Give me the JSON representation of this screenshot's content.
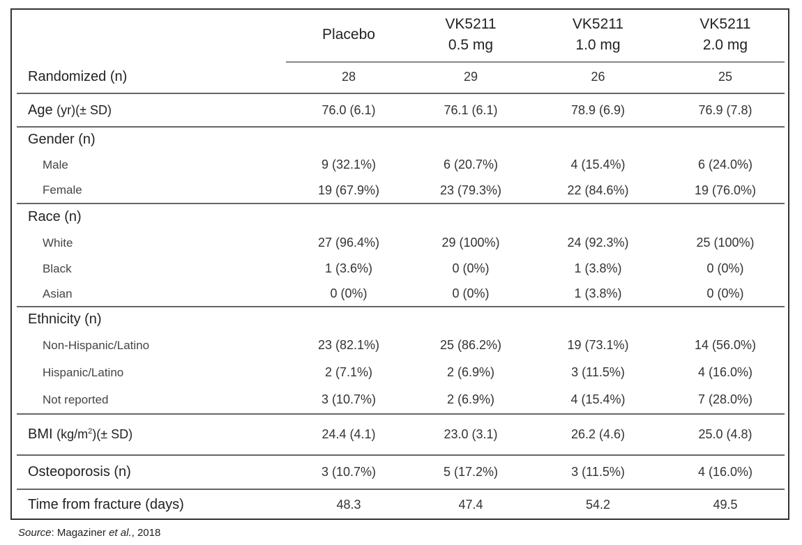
{
  "columns": [
    "Placebo",
    "VK5211\n0.5 mg",
    "VK5211\n1.0 mg",
    "VK5211\n2.0 mg"
  ],
  "column_lines": [
    [
      "Placebo",
      ""
    ],
    [
      "VK5211",
      "0.5 mg"
    ],
    [
      "VK5211",
      "1.0 mg"
    ],
    [
      "VK5211",
      "2.0 mg"
    ]
  ],
  "rows": {
    "randomized": {
      "label": "Randomized (n)",
      "values": [
        "28",
        "29",
        "26",
        "25"
      ]
    },
    "age": {
      "label": "Age",
      "unit": "(yr)(± SD)",
      "values": [
        "76.0 (6.1)",
        "76.1 (6.1)",
        "78.9 (6.9)",
        "76.9 (7.8)"
      ]
    },
    "gender": {
      "label": "Gender (n)"
    },
    "male": {
      "label": "Male",
      "values": [
        "9 (32.1%)",
        "6 (20.7%)",
        "4 (15.4%)",
        "6 (24.0%)"
      ]
    },
    "female": {
      "label": "Female",
      "values": [
        "19 (67.9%)",
        "23 (79.3%)",
        "22 (84.6%)",
        "19 (76.0%)"
      ]
    },
    "race": {
      "label": "Race (n)"
    },
    "white": {
      "label": "White",
      "values": [
        "27 (96.4%)",
        "29 (100%)",
        "24 (92.3%)",
        "25 (100%)"
      ]
    },
    "black": {
      "label": "Black",
      "values": [
        "1 (3.6%)",
        "0 (0%)",
        "1 (3.8%)",
        "0 (0%)"
      ]
    },
    "asian": {
      "label": "Asian",
      "values": [
        "0 (0%)",
        "0 (0%)",
        "1 (3.8%)",
        "0 (0%)"
      ]
    },
    "ethnicity": {
      "label": "Ethnicity (n)"
    },
    "non_hispanic": {
      "label": "Non-Hispanic/Latino",
      "values": [
        "23 (82.1%)",
        "25 (86.2%)",
        "19 (73.1%)",
        "14 (56.0%)"
      ]
    },
    "hispanic": {
      "label": "Hispanic/Latino",
      "values": [
        "2 (7.1%)",
        "2 (6.9%)",
        "3 (11.5%)",
        "4 (16.0%)"
      ]
    },
    "not_reported": {
      "label": "Not reported",
      "values": [
        "3 (10.7%)",
        "2 (6.9%)",
        "4 (15.4%)",
        "7 (28.0%)"
      ]
    },
    "bmi": {
      "label": "BMI",
      "unit_pre": "(kg/m",
      "unit_sup": "2",
      "unit_post": ")(± SD)",
      "values": [
        "24.4 (4.1)",
        "23.0 (3.1)",
        "26.2 (4.6)",
        "25.0 (4.8)"
      ]
    },
    "osteoporosis": {
      "label": "Osteoporosis (n)",
      "values": [
        "3 (10.7%)",
        "5 (17.2%)",
        "3 (11.5%)",
        "4 (16.0%)"
      ]
    },
    "time_from_fracture": {
      "label": "Time from fracture (days)",
      "values": [
        "48.3",
        "47.4",
        "54.2",
        "49.5"
      ]
    }
  },
  "source": {
    "label": "Source",
    "text": ": Magaziner ",
    "etal": "et al.",
    "year": ", 2018"
  }
}
